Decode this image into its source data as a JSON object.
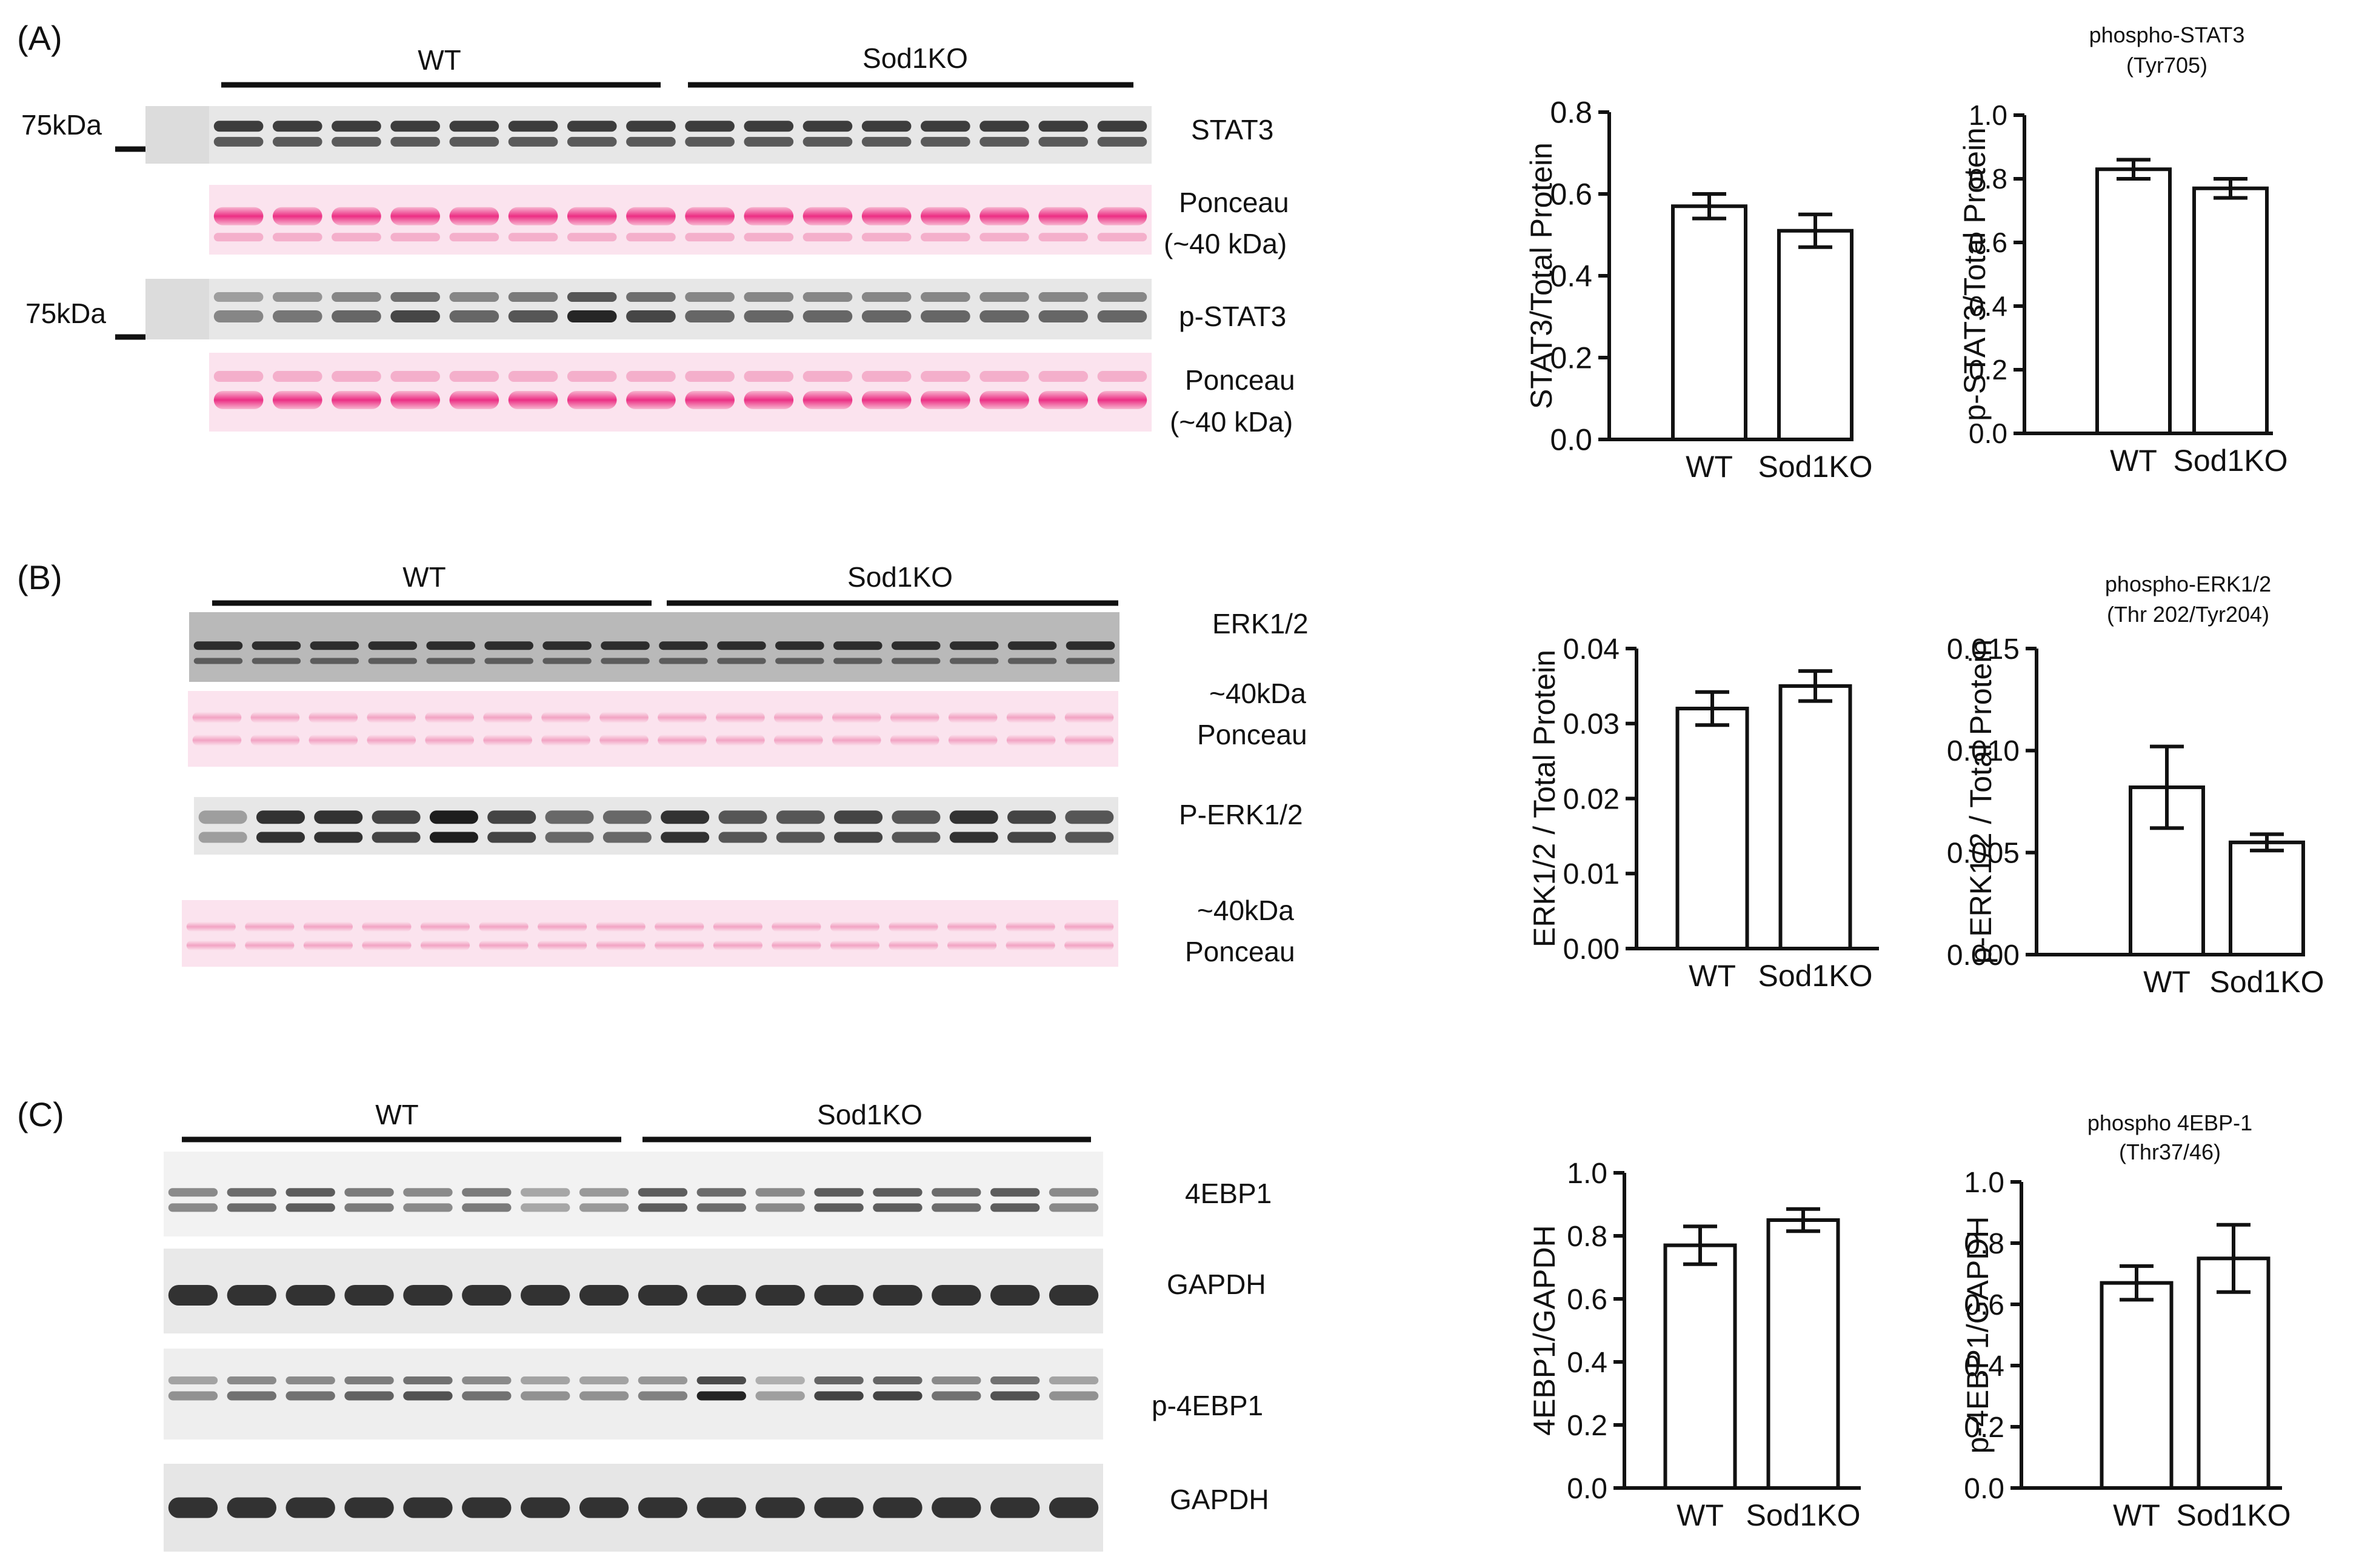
{
  "colors": {
    "ponceau_bg": "#fbe3ee",
    "ponceau_band": "#ee3f8c",
    "ponceau_band_light": "#f3a9c6",
    "blot_bg": "#e7e7e7",
    "blot_bg_dark": "#b9b9b9",
    "ink": "#111111"
  },
  "panels": {
    "a": {
      "letter": "(A)",
      "groups": [
        "WT",
        "Sod1KO"
      ],
      "marker_1": "75kDa",
      "marker_2": "75kDa",
      "labels": {
        "stat3": "STAT3",
        "ponceau1_l1": "Ponceau",
        "ponceau1_l2": "(~40 kDa)",
        "pstat3": "p-STAT3",
        "ponceau2_l1": "Ponceau",
        "ponceau2_l2": "(~40 kDa)"
      }
    },
    "b": {
      "letter": "(B)",
      "groups": [
        "WT",
        "Sod1KO"
      ],
      "labels": {
        "erk": "ERK1/2",
        "ponceau1_l1": "~40kDa",
        "ponceau1_l2": "Ponceau",
        "perk": "P-ERK1/2",
        "ponceau2_l1": "~40kDa",
        "ponceau2_l2": "Ponceau"
      }
    },
    "c": {
      "letter": "(C)",
      "groups": [
        "WT",
        "Sod1KO"
      ],
      "labels": {
        "ebp": "4EBP1",
        "gapdh1": "GAPDH",
        "pebp": "p-4EBP1",
        "gapdh2": "GAPDH"
      }
    }
  },
  "chart_data": [
    {
      "id": "stat3",
      "type": "bar",
      "title": "",
      "subtitle": "",
      "categories": [
        "WT",
        "Sod1KO"
      ],
      "values": [
        0.57,
        0.51
      ],
      "errors": [
        0.03,
        0.04
      ],
      "ylabel": "STAT3/Total Protein",
      "ylim": [
        0,
        0.8
      ],
      "ticks": [
        "0.0",
        "0.2",
        "0.4",
        "0.6",
        "0.8"
      ]
    },
    {
      "id": "pstat3",
      "type": "bar",
      "title": "phospho-STAT3",
      "subtitle": "(Tyr705)",
      "categories": [
        "WT",
        "Sod1KO"
      ],
      "values": [
        0.83,
        0.77
      ],
      "errors": [
        0.03,
        0.03
      ],
      "ylabel": "p-STAT3/Total Protein",
      "ylim": [
        0,
        1.0
      ],
      "ticks": [
        "0.0",
        "0.2",
        "0.4",
        "0.6",
        "0.8",
        "1.0"
      ]
    },
    {
      "id": "erk",
      "type": "bar",
      "title": "",
      "subtitle": "",
      "categories": [
        "WT",
        "Sod1KO"
      ],
      "values": [
        0.032,
        0.035
      ],
      "errors": [
        0.0022,
        0.002
      ],
      "ylabel": "ERK1/2 / Total Protein",
      "ylim": [
        0,
        0.04
      ],
      "ticks": [
        "0.00",
        "0.01",
        "0.02",
        "0.03",
        "0.04"
      ]
    },
    {
      "id": "perk",
      "type": "bar",
      "title": "phospho-ERK1/2",
      "subtitle": "(Thr 202/Tyr204)",
      "categories": [
        "WT",
        "Sod1KO"
      ],
      "values": [
        0.0082,
        0.0055
      ],
      "errors": [
        0.002,
        0.0004
      ],
      "ylabel": "p-ERK1/2 / Total Protein",
      "ylim": [
        0,
        0.015
      ],
      "ticks": [
        "0.000",
        "0.005",
        "0.010",
        "0.015"
      ]
    },
    {
      "id": "ebp",
      "type": "bar",
      "title": "",
      "subtitle": "",
      "categories": [
        "WT",
        "Sod1KO"
      ],
      "values": [
        0.77,
        0.85
      ],
      "errors": [
        0.06,
        0.035
      ],
      "ylabel": "4EBP1/GAPDH",
      "ylim": [
        0,
        1.0
      ],
      "ticks": [
        "0.0",
        "0.2",
        "0.4",
        "0.6",
        "0.8",
        "1.0"
      ]
    },
    {
      "id": "pebp",
      "type": "bar",
      "title": "phospho 4EBP-1",
      "subtitle": "(Thr37/46)",
      "categories": [
        "WT",
        "Sod1KO"
      ],
      "values": [
        0.67,
        0.75
      ],
      "errors": [
        0.055,
        0.11
      ],
      "ylabel": "p-4EBP1/GAPDH",
      "ylim": [
        0,
        1.0
      ],
      "ticks": [
        "0.0",
        "0.2",
        "0.4",
        "0.6",
        "0.8",
        "1.0"
      ]
    }
  ]
}
